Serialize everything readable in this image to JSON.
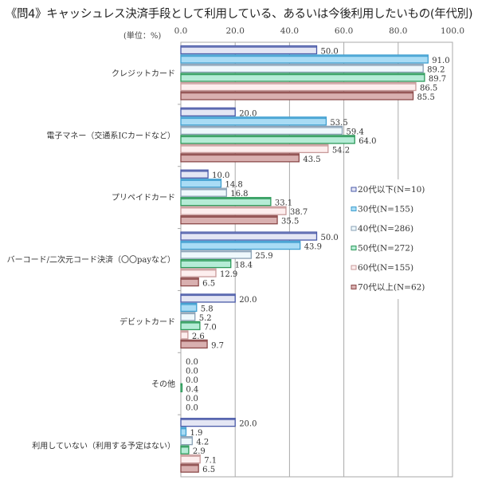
{
  "chart_data": {
    "type": "bar",
    "orientation": "horizontal",
    "title": "《問4》キャッシュレス決済手段として利用している、あるいは今後利用したいもの(年代別)",
    "unit_label": "(単位：%)",
    "xlabel": "",
    "ylabel": "",
    "xlim": [
      0,
      100
    ],
    "x_ticks": [
      "0.0",
      "20.0",
      "40.0",
      "60.0",
      "80.0",
      "100.0"
    ],
    "x_tick_values": [
      0,
      20,
      40,
      60,
      80,
      100
    ],
    "grid": true,
    "legend_position": "right-middle",
    "categories": [
      "クレジットカード",
      "電子マネー（交通系ICカードなど）",
      "プリペイドカード",
      "バーコード/二次元コード決済（〇〇payなど）",
      "デビットカード",
      "その他",
      "利用していない（利用する予定はない）"
    ],
    "series": [
      {
        "name": "20代以下(N=10)",
        "color": "#4a5aa8",
        "fill": "#e4e6f4",
        "values": [
          50.0,
          20.0,
          10.0,
          50.0,
          20.0,
          0.0,
          20.0
        ]
      },
      {
        "name": "30代(N=155)",
        "color": "#3f9fd0",
        "fill": "#a9dcf5",
        "values": [
          91.0,
          53.5,
          14.8,
          43.9,
          5.8,
          0.0,
          1.9
        ]
      },
      {
        "name": "40代(N=286)",
        "color": "#8aa0b4",
        "fill": "#eef8fc",
        "values": [
          89.2,
          59.4,
          16.8,
          25.9,
          5.2,
          0.0,
          4.2
        ]
      },
      {
        "name": "50代(N=272)",
        "color": "#2e9a5a",
        "fill": "#b5ecd6",
        "values": [
          89.7,
          64.0,
          33.1,
          18.4,
          7.0,
          0.4,
          2.9
        ]
      },
      {
        "name": "60代(N=155)",
        "color": "#c89a9a",
        "fill": "#fdeeee",
        "values": [
          86.5,
          54.2,
          38.7,
          12.9,
          2.6,
          0.0,
          7.1
        ]
      },
      {
        "name": "70代以上(N=62)",
        "color": "#8c4a4a",
        "fill": "#d9b0b0",
        "values": [
          85.5,
          43.5,
          35.5,
          6.5,
          9.7,
          0.0,
          6.5
        ]
      }
    ]
  }
}
